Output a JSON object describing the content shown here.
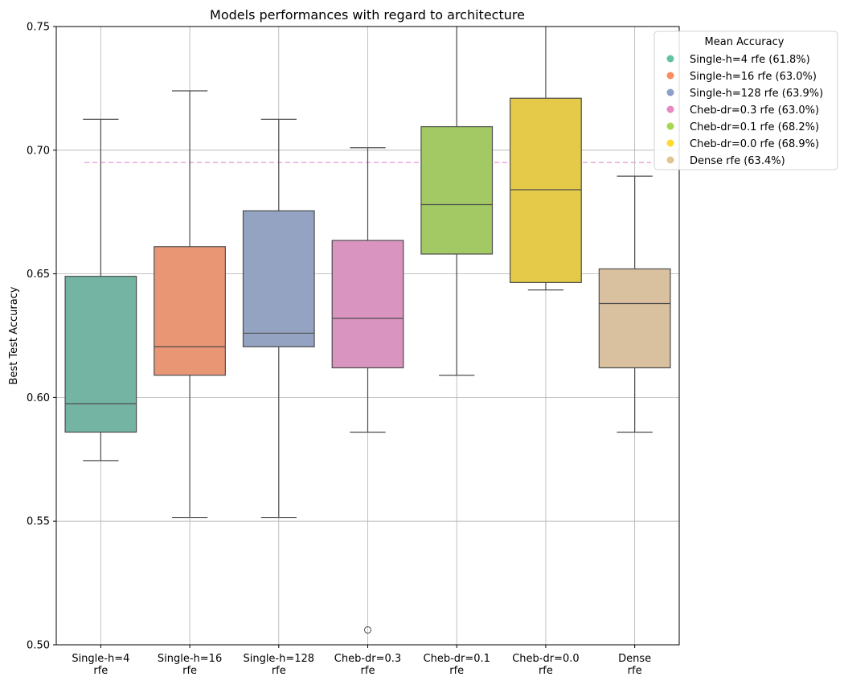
{
  "chart_data": {
    "type": "box",
    "title": "Models performances with regard to architecture",
    "xlabel": "",
    "ylabel": "Best Test Accuracy",
    "ylim": [
      0.5,
      0.75
    ],
    "yticks": [
      "0.50",
      "0.55",
      "0.60",
      "0.65",
      "0.70",
      "0.75"
    ],
    "grid": true,
    "reference_line": {
      "y": 0.695,
      "style": "dashed",
      "color": "#e7a8e0"
    },
    "categories": [
      [
        "Single-h=4",
        "rfe"
      ],
      [
        "Single-h=16",
        "rfe"
      ],
      [
        "Single-h=128",
        "rfe"
      ],
      [
        "Cheb-dr=0.3",
        "rfe"
      ],
      [
        "Cheb-dr=0.1",
        "rfe"
      ],
      [
        "Cheb-dr=0.0",
        "rfe"
      ],
      [
        "Dense",
        "rfe"
      ]
    ],
    "boxes": [
      {
        "whisker_low": 0.5745,
        "q1": 0.586,
        "median": 0.5975,
        "q3": 0.649,
        "whisker_high": 0.7125,
        "outliers": [],
        "color": "#73b5a2"
      },
      {
        "whisker_low": 0.5515,
        "q1": 0.609,
        "median": 0.6205,
        "q3": 0.661,
        "whisker_high": 0.724,
        "outliers": [],
        "color": "#e99675"
      },
      {
        "whisker_low": 0.5515,
        "q1": 0.6205,
        "median": 0.626,
        "q3": 0.6755,
        "whisker_high": 0.7125,
        "outliers": [],
        "color": "#94a3c1"
      },
      {
        "whisker_low": 0.586,
        "q1": 0.612,
        "median": 0.632,
        "q3": 0.6635,
        "whisker_high": 0.701,
        "outliers": [
          0.506
        ],
        "color": "#da94c0"
      },
      {
        "whisker_low": 0.609,
        "q1": 0.658,
        "median": 0.678,
        "q3": 0.7095,
        "whisker_high": 0.75,
        "outliers": [],
        "color": "#a2c963"
      },
      {
        "whisker_low": 0.6435,
        "q1": 0.6465,
        "median": 0.684,
        "q3": 0.721,
        "whisker_high": 0.75,
        "outliers": [],
        "color": "#e5ca4a"
      },
      {
        "whisker_low": 0.586,
        "q1": 0.612,
        "median": 0.638,
        "q3": 0.652,
        "whisker_high": 0.6895,
        "outliers": [],
        "color": "#d9c19f"
      }
    ],
    "legend": {
      "title": "Mean Accuracy",
      "placement": "top-right",
      "entries": [
        {
          "label": "Single-h=4 rfe (61.8%)",
          "color": "#66c2a5"
        },
        {
          "label": "Single-h=16 rfe (63.0%)",
          "color": "#fc8d62"
        },
        {
          "label": "Single-h=128 rfe (63.9%)",
          "color": "#8da0cb"
        },
        {
          "label": "Cheb-dr=0.3 rfe (63.0%)",
          "color": "#e78ac3"
        },
        {
          "label": "Cheb-dr=0.1 rfe (68.2%)",
          "color": "#a6d854"
        },
        {
          "label": "Cheb-dr=0.0 rfe (68.9%)",
          "color": "#ffd92f"
        },
        {
          "label": "Dense rfe (63.4%)",
          "color": "#e5c494"
        }
      ]
    }
  }
}
